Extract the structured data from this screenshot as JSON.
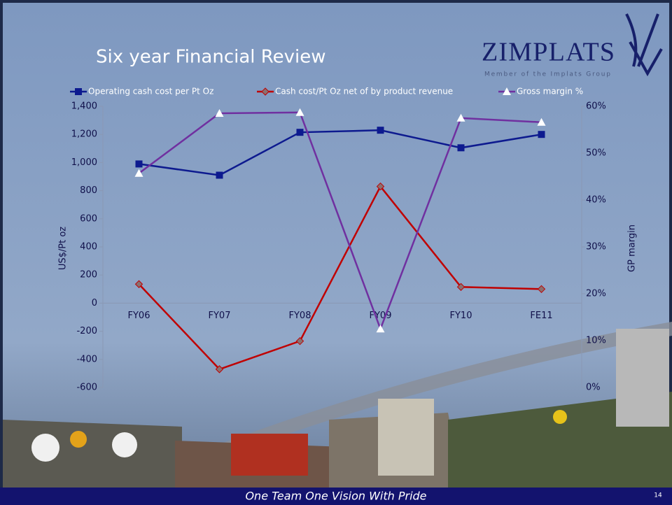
{
  "slide": {
    "title": "Six year Financial Review",
    "logo": "ZIMPLATS",
    "logo_tagline": "Member of the Implats Group",
    "footer": "One Team One Vision With Pride",
    "page_number": "14"
  },
  "chart_data": {
    "type": "line",
    "categories": [
      "FY06",
      "FY07",
      "FY08",
      "FY09",
      "FY10",
      "FE11"
    ],
    "series": [
      {
        "name": "Operating cash cost per Pt Oz",
        "color": "#0d1a8f",
        "marker": "square",
        "values": [
          990,
          910,
          1215,
          1230,
          1105,
          1200
        ]
      },
      {
        "name": "Cash cost/Pt Oz net of by product revenue",
        "color": "#c00000",
        "marker": "diamond",
        "values": [
          135,
          -470,
          -270,
          830,
          115,
          100
        ]
      },
      {
        "name": "Gross margin %",
        "color": "#7030a0",
        "marker": "triangle",
        "axis": "y2",
        "values": [
          45.7,
          58.5,
          58.7,
          12.5,
          57.5,
          56.6
        ]
      }
    ],
    "ylabel": "US$/Pt oz",
    "y2label": "GP margin",
    "ylim": [
      -600,
      1400
    ],
    "yticks": [
      -600,
      -400,
      -200,
      0,
      200,
      400,
      600,
      800,
      {
        "value": 1000,
        "label": "1,000"
      },
      {
        "value": 1200,
        "label": "1,200"
      },
      {
        "value": 1400,
        "label": "1,400"
      }
    ],
    "y2lim": [
      0,
      60
    ],
    "y2ticks": [
      {
        "value": 0,
        "label": "0%"
      },
      {
        "value": 10,
        "label": "10%"
      },
      {
        "value": 20,
        "label": "20%"
      },
      {
        "value": 30,
        "label": "30%"
      },
      {
        "value": 40,
        "label": "40%"
      },
      {
        "value": 50,
        "label": "50%"
      },
      {
        "value": 60,
        "label": "60%"
      }
    ],
    "legend": "top"
  }
}
